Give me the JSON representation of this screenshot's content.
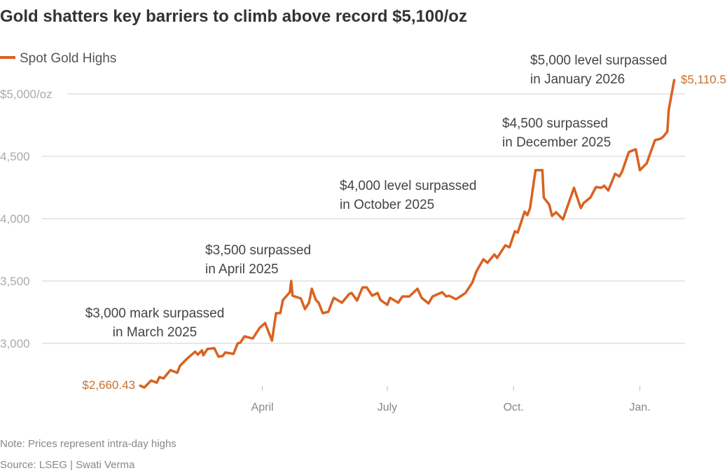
{
  "chart_data": {
    "type": "line",
    "title": "Gold shatters key barriers to climb above record $5,100/oz",
    "xlabel": "",
    "ylabel": "",
    "ylim": [
      2600,
      5200
    ],
    "xlim": [
      "2025-01-01",
      "2026-01-31"
    ],
    "grid": "horizontal",
    "legend_position": "top-left",
    "y_ticks": [
      {
        "value": 5000,
        "label": "$5,000/oz"
      },
      {
        "value": 4500,
        "label": "4,500"
      },
      {
        "value": 4000,
        "label": "4,000"
      },
      {
        "value": 3500,
        "label": "3,500"
      },
      {
        "value": 3000,
        "label": "3,000"
      }
    ],
    "x_ticks": [
      {
        "date": "2025-04-01",
        "label": "April"
      },
      {
        "date": "2025-07-01",
        "label": "July"
      },
      {
        "date": "2025-10-01",
        "label": "Oct."
      },
      {
        "date": "2026-01-01",
        "label": "Jan."
      }
    ],
    "series": [
      {
        "name": "Spot Gold Highs",
        "color": "#d9621f",
        "points": [
          [
            "2025-01-02",
            2660.43
          ],
          [
            "2025-01-05",
            2646
          ],
          [
            "2025-01-10",
            2702
          ],
          [
            "2025-01-14",
            2685
          ],
          [
            "2025-01-16",
            2730
          ],
          [
            "2025-01-19",
            2719
          ],
          [
            "2025-01-24",
            2786
          ],
          [
            "2025-01-29",
            2764
          ],
          [
            "2025-01-31",
            2820
          ],
          [
            "2025-02-05",
            2876
          ],
          [
            "2025-02-11",
            2933
          ],
          [
            "2025-02-13",
            2910
          ],
          [
            "2025-02-16",
            2944
          ],
          [
            "2025-02-17",
            2904
          ],
          [
            "2025-02-20",
            2955
          ],
          [
            "2025-02-25",
            2961
          ],
          [
            "2025-02-28",
            2893
          ],
          [
            "2025-03-03",
            2899
          ],
          [
            "2025-03-05",
            2927
          ],
          [
            "2025-03-11",
            2916
          ],
          [
            "2025-03-14",
            3000
          ],
          [
            "2025-03-16",
            3006
          ],
          [
            "2025-03-19",
            3056
          ],
          [
            "2025-03-25",
            3039
          ],
          [
            "2025-03-30",
            3124
          ],
          [
            "2025-04-03",
            3163
          ],
          [
            "2025-04-08",
            3022
          ],
          [
            "2025-04-11",
            3242
          ],
          [
            "2025-04-14",
            3242
          ],
          [
            "2025-04-16",
            3348
          ],
          [
            "2025-04-21",
            3410
          ],
          [
            "2025-04-22",
            3500
          ],
          [
            "2025-04-23",
            3382
          ],
          [
            "2025-04-29",
            3360
          ],
          [
            "2025-05-02",
            3275
          ],
          [
            "2025-05-05",
            3326
          ],
          [
            "2025-05-07",
            3438
          ],
          [
            "2025-05-10",
            3348
          ],
          [
            "2025-05-12",
            3326
          ],
          [
            "2025-05-15",
            3242
          ],
          [
            "2025-05-19",
            3253
          ],
          [
            "2025-05-23",
            3365
          ],
          [
            "2025-05-29",
            3326
          ],
          [
            "2025-06-03",
            3393
          ],
          [
            "2025-06-05",
            3404
          ],
          [
            "2025-06-09",
            3343
          ],
          [
            "2025-06-13",
            3449
          ],
          [
            "2025-06-16",
            3449
          ],
          [
            "2025-06-20",
            3382
          ],
          [
            "2025-06-24",
            3404
          ],
          [
            "2025-06-26",
            3348
          ],
          [
            "2025-07-01",
            3309
          ],
          [
            "2025-07-03",
            3365
          ],
          [
            "2025-07-09",
            3326
          ],
          [
            "2025-07-12",
            3376
          ],
          [
            "2025-07-17",
            3376
          ],
          [
            "2025-07-23",
            3438
          ],
          [
            "2025-07-26",
            3365
          ],
          [
            "2025-07-31",
            3320
          ],
          [
            "2025-08-03",
            3376
          ],
          [
            "2025-08-10",
            3410
          ],
          [
            "2025-08-13",
            3376
          ],
          [
            "2025-08-15",
            3382
          ],
          [
            "2025-08-20",
            3354
          ],
          [
            "2025-08-24",
            3382
          ],
          [
            "2025-08-27",
            3404
          ],
          [
            "2025-09-01",
            3489
          ],
          [
            "2025-09-04",
            3579
          ],
          [
            "2025-09-09",
            3674
          ],
          [
            "2025-09-12",
            3646
          ],
          [
            "2025-09-17",
            3713
          ],
          [
            "2025-09-19",
            3685
          ],
          [
            "2025-09-25",
            3786
          ],
          [
            "2025-09-28",
            3770
          ],
          [
            "2025-10-02",
            3899
          ],
          [
            "2025-10-04",
            3888
          ],
          [
            "2025-10-09",
            4056
          ],
          [
            "2025-10-11",
            4028
          ],
          [
            "2025-10-13",
            4084
          ],
          [
            "2025-10-17",
            4388
          ],
          [
            "2025-10-22",
            4388
          ],
          [
            "2025-10-23",
            4169
          ],
          [
            "2025-10-27",
            4112
          ],
          [
            "2025-10-29",
            4022
          ],
          [
            "2025-11-01",
            4051
          ],
          [
            "2025-11-06",
            3994
          ],
          [
            "2025-11-14",
            4247
          ],
          [
            "2025-11-19",
            4084
          ],
          [
            "2025-11-21",
            4124
          ],
          [
            "2025-11-26",
            4169
          ],
          [
            "2025-11-30",
            4253
          ],
          [
            "2025-12-04",
            4247
          ],
          [
            "2025-12-06",
            4264
          ],
          [
            "2025-12-09",
            4225
          ],
          [
            "2025-12-14",
            4360
          ],
          [
            "2025-12-17",
            4337
          ],
          [
            "2025-12-19",
            4376
          ],
          [
            "2025-12-24",
            4534
          ],
          [
            "2025-12-29",
            4556
          ],
          [
            "2026-01-01",
            4388
          ],
          [
            "2026-01-06",
            4444
          ],
          [
            "2026-01-08",
            4506
          ],
          [
            "2026-01-12",
            4629
          ],
          [
            "2026-01-16",
            4640
          ],
          [
            "2026-01-18",
            4657
          ],
          [
            "2026-01-21",
            4697
          ],
          [
            "2026-01-22",
            4871
          ],
          [
            "2026-01-26",
            5110.5
          ]
        ]
      }
    ],
    "start_label": "$2,660.43",
    "end_label": "$5,110.5",
    "annotations": [
      {
        "line1": "$3,000 mark surpassed",
        "line2": "in March 2025"
      },
      {
        "line1": "$3,500 surpassed",
        "line2": "in April 2025"
      },
      {
        "line1": "$4,000 level surpassed",
        "line2": "in October 2025"
      },
      {
        "line1": "$4,500 surpassed",
        "line2": "in December 2025"
      },
      {
        "line1": "$5,000 level surpassed",
        "line2": "in January 2026"
      }
    ],
    "note": "Note: Prices represent intra-day highs",
    "source": "Source: LSEG | Swati Verma"
  }
}
